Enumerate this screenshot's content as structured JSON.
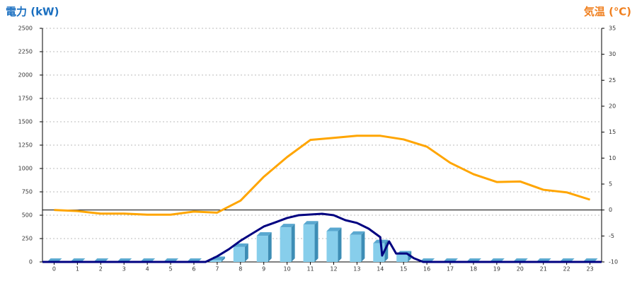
{
  "chart_data": {
    "type": "bar",
    "y_axis_label": "電力 (kW)",
    "y2_axis_label": "気温 (℃)",
    "categories": [
      "0",
      "1",
      "2",
      "3",
      "4",
      "5",
      "6",
      "7",
      "8",
      "9",
      "10",
      "11",
      "12",
      "13",
      "14",
      "15",
      "16",
      "17",
      "18",
      "19",
      "20",
      "21",
      "22",
      "23"
    ],
    "xlim": [
      -0.5,
      23.5
    ],
    "ylim": [
      0,
      2500
    ],
    "yticks": [
      0,
      250,
      500,
      750,
      1000,
      1250,
      1500,
      1750,
      2000,
      2250,
      2500
    ],
    "y2lim": [
      -10,
      35
    ],
    "y2ticks": [
      -10,
      -5,
      0,
      5,
      10,
      15,
      20,
      25,
      30,
      35
    ],
    "grid": true,
    "reference_line": {
      "axis": "y2",
      "value": 0,
      "color": "#000000"
    },
    "series": [
      {
        "type": "bar",
        "color": "#87ceeb",
        "values": [
          0,
          0,
          0,
          0,
          0,
          0,
          0,
          20,
          160,
          280,
          370,
          400,
          330,
          290,
          200,
          80,
          0,
          0,
          0,
          0,
          0,
          0,
          0,
          0
        ]
      },
      {
        "type": "line",
        "color": "#000080",
        "x": [
          -0.5,
          6.5,
          7,
          7.5,
          8,
          8.5,
          9,
          9.5,
          10,
          10.5,
          11,
          11.5,
          12,
          12.5,
          13,
          13.5,
          14,
          14.08,
          14.38,
          14.68,
          15.14,
          15.44,
          15.84,
          23.5
        ],
        "values": [
          0,
          0,
          60,
          136,
          227,
          303,
          379,
          424,
          470,
          500,
          508,
          515,
          500,
          447,
          417,
          356,
          265,
          68,
          220,
          90,
          90,
          40,
          0,
          0
        ]
      },
      {
        "type": "line",
        "axis": "y2",
        "color": "#ffa500",
        "values": [
          0,
          -0.2,
          -0.7,
          -0.7,
          -0.9,
          -0.9,
          -0.3,
          -0.5,
          1.8,
          6.4,
          10.2,
          13.5,
          13.9,
          14.3,
          14.3,
          13.6,
          12.2,
          9.1,
          6.9,
          5.4,
          5.5,
          3.9,
          3.4,
          2.0
        ]
      }
    ]
  }
}
